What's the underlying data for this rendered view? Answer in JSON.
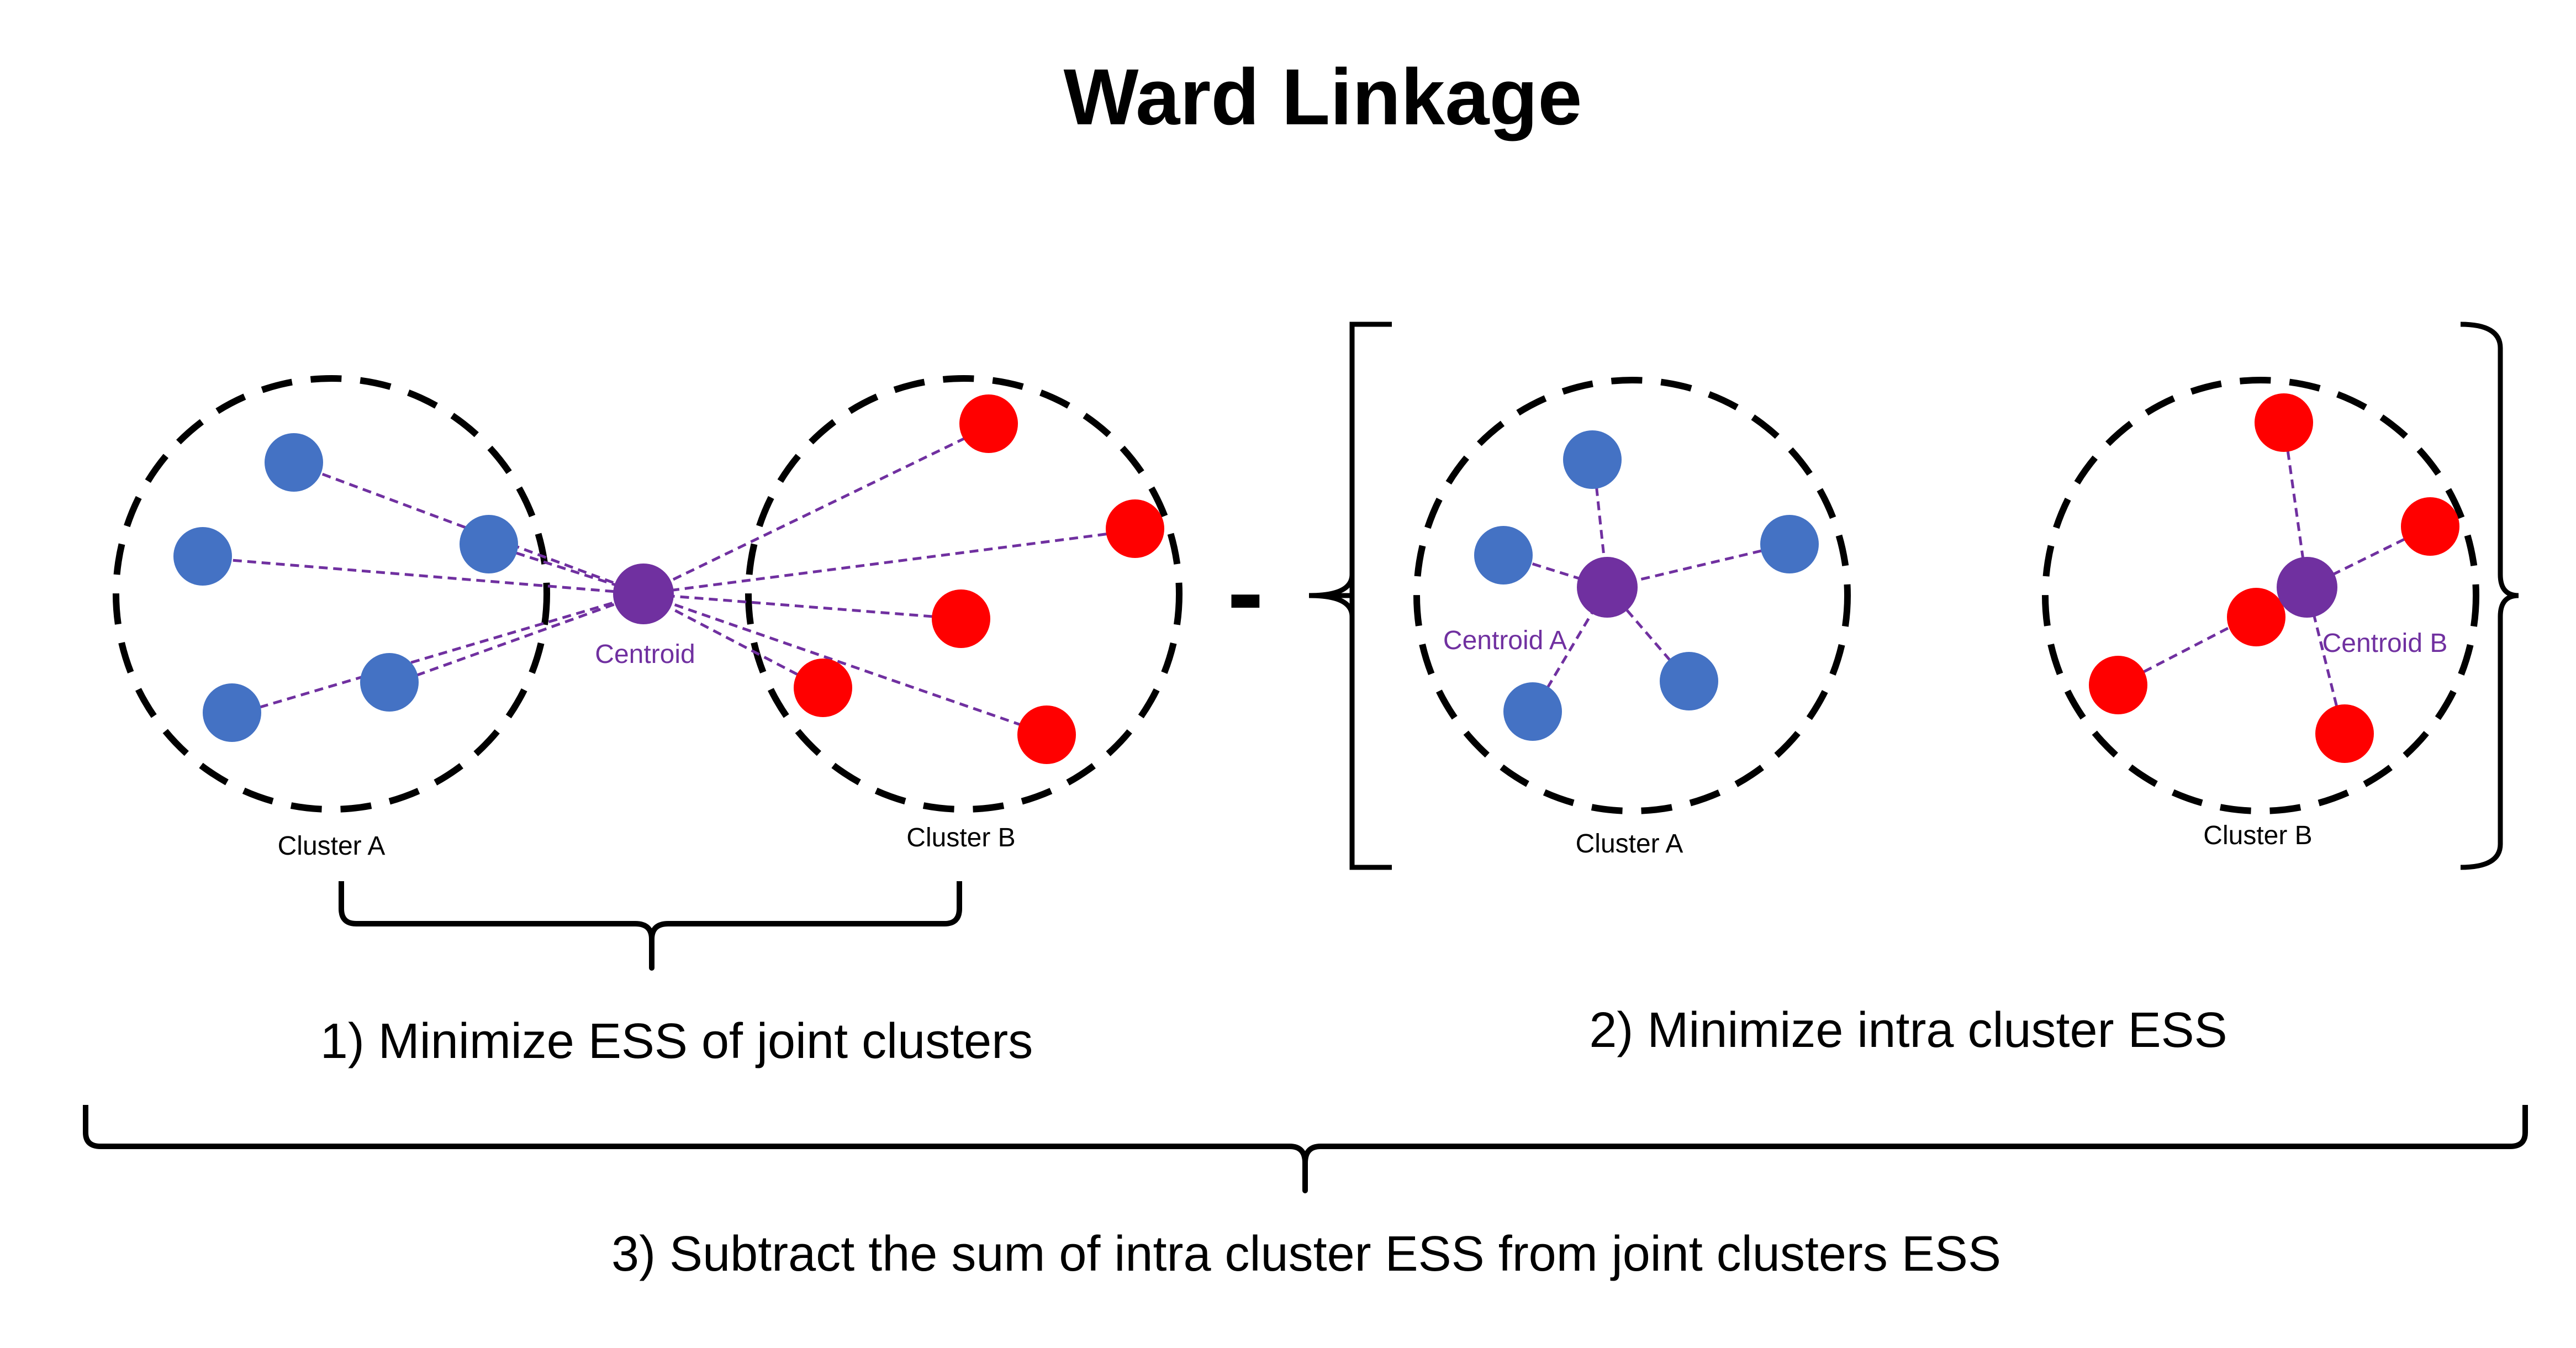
{
  "title": "Ward Linkage",
  "left_panel": {
    "cluster_a_label": "Cluster A",
    "cluster_b_label": "Cluster B",
    "centroid_label": "Centroid"
  },
  "right_panel": {
    "cluster_a_label": "Cluster A",
    "cluster_b_label": "Cluster B",
    "centroid_a_label": "Centroid A",
    "centroid_b_label": "Centroid B"
  },
  "operator": "-",
  "steps": {
    "step1": "1) Minimize ESS of joint clusters",
    "step2": "2) Minimize intra cluster ESS",
    "step3": "3) Subtract the sum of intra cluster ESS from joint clusters ESS"
  },
  "colors": {
    "cluster_a_point": "#4472C4",
    "cluster_b_point": "#FF0000",
    "centroid": "#7030A0",
    "link_line": "#7030A0",
    "boundary": "#000000",
    "text": "#000000"
  }
}
